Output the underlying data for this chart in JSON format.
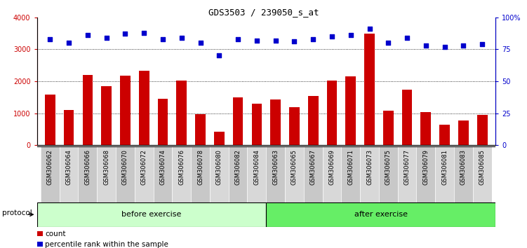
{
  "title": "GDS3503 / 239050_s_at",
  "samples": [
    "GSM306062",
    "GSM306064",
    "GSM306066",
    "GSM306068",
    "GSM306070",
    "GSM306072",
    "GSM306074",
    "GSM306076",
    "GSM306078",
    "GSM306080",
    "GSM306082",
    "GSM306084",
    "GSM306063",
    "GSM306065",
    "GSM306067",
    "GSM306069",
    "GSM306071",
    "GSM306073",
    "GSM306075",
    "GSM306077",
    "GSM306079",
    "GSM306081",
    "GSM306083",
    "GSM306085"
  ],
  "counts": [
    1580,
    1100,
    2200,
    1850,
    2180,
    2320,
    1450,
    2010,
    960,
    420,
    1500,
    1290,
    1430,
    1190,
    1530,
    2010,
    2160,
    3500,
    1070,
    1730,
    1030,
    630,
    760,
    950
  ],
  "percentile": [
    83,
    80,
    86,
    84,
    87,
    88,
    83,
    84,
    80,
    70,
    83,
    82,
    82,
    81,
    83,
    85,
    86,
    91,
    80,
    84,
    78,
    77,
    78,
    79
  ],
  "before_exercise_count": 12,
  "after_exercise_count": 12,
  "before_color": "#ccffcc",
  "after_color": "#66ee66",
  "bar_color": "#cc0000",
  "dot_color": "#0000cc",
  "ylim_left": [
    0,
    4000
  ],
  "ylim_right": [
    0,
    100
  ],
  "yticks_left": [
    0,
    1000,
    2000,
    3000,
    4000
  ],
  "yticks_right": [
    0,
    25,
    50,
    75,
    100
  ],
  "background_color": "#ffffff",
  "plot_bg_color": "#ffffff",
  "title_fontsize": 9,
  "tick_label_fontsize": 6,
  "axis_tick_fontsize": 7,
  "protocol_label": "protocol",
  "before_label": "before exercise",
  "after_label": "after exercise",
  "legend_count_label": "count",
  "legend_pct_label": "percentile rank within the sample"
}
